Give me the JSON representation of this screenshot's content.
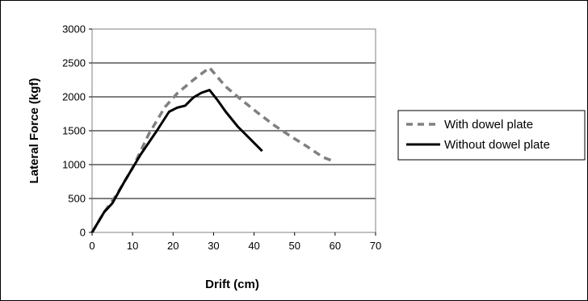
{
  "chart_data": {
    "type": "line",
    "title": "",
    "xlabel": "Drift (cm)",
    "ylabel": "Lateral Force (kgf)",
    "xlim": [
      0,
      70
    ],
    "ylim": [
      0,
      3000
    ],
    "xticks": [
      0,
      10,
      20,
      30,
      40,
      50,
      60,
      70
    ],
    "yticks": [
      0,
      500,
      1000,
      1500,
      2000,
      2500,
      3000
    ],
    "grid": "horizontal",
    "legend_position": "right",
    "series": [
      {
        "name": "With dowel plate",
        "style": "dashed",
        "color": "#808080",
        "x": [
          0,
          3,
          6,
          10,
          14,
          18,
          21,
          25,
          29,
          33,
          37,
          41,
          45,
          49,
          53,
          57,
          60
        ],
        "y": [
          0,
          300,
          550,
          950,
          1450,
          1850,
          2050,
          2250,
          2430,
          2150,
          1950,
          1760,
          1580,
          1420,
          1270,
          1110,
          1040
        ]
      },
      {
        "name": "Without dowel plate",
        "style": "solid",
        "color": "#000000",
        "x": [
          0,
          3,
          5,
          8,
          12,
          16,
          19,
          21,
          23,
          25,
          27,
          29,
          31,
          33,
          36,
          39,
          42
        ],
        "y": [
          0,
          300,
          430,
          750,
          1150,
          1500,
          1780,
          1840,
          1870,
          1990,
          2060,
          2100,
          1950,
          1780,
          1560,
          1380,
          1200
        ]
      }
    ]
  }
}
